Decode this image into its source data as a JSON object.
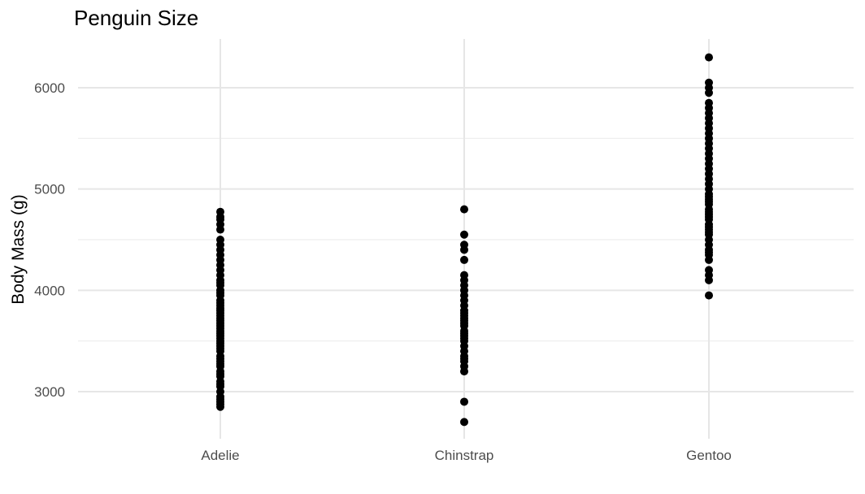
{
  "chart_data": {
    "type": "scatter",
    "title": "Penguin Size",
    "xlabel": "",
    "ylabel": "Body Mass (g)",
    "categories": [
      "Adelie",
      "Chinstrap",
      "Gentoo"
    ],
    "y_ticks": [
      3000,
      4000,
      5000,
      6000
    ],
    "y_tick_labels": [
      "3000",
      "4000",
      "5000",
      "6000"
    ],
    "ylim": [
      2520,
      6470
    ],
    "grid": true,
    "legend": "none",
    "point_color": "#000000",
    "series": [
      {
        "category": "Adelie",
        "values": [
          2850,
          2875,
          2900,
          2925,
          2950,
          3000,
          3050,
          3075,
          3100,
          3150,
          3175,
          3200,
          3250,
          3275,
          3300,
          3325,
          3350,
          3400,
          3425,
          3450,
          3475,
          3500,
          3525,
          3550,
          3575,
          3600,
          3625,
          3650,
          3675,
          3700,
          3725,
          3750,
          3775,
          3800,
          3825,
          3850,
          3875,
          3900,
          3950,
          3975,
          4000,
          4050,
          4075,
          4100,
          4150,
          4200,
          4250,
          4300,
          4350,
          4400,
          4450,
          4500,
          4600,
          4650,
          4700,
          4725,
          4775
        ]
      },
      {
        "category": "Chinstrap",
        "values": [
          2700,
          2900,
          3200,
          3250,
          3300,
          3325,
          3350,
          3400,
          3450,
          3500,
          3525,
          3550,
          3575,
          3600,
          3650,
          3675,
          3700,
          3725,
          3750,
          3775,
          3800,
          3850,
          3900,
          3950,
          4000,
          4050,
          4100,
          4150,
          4300,
          4400,
          4450,
          4550,
          4800
        ]
      },
      {
        "category": "Gentoo",
        "values": [
          3950,
          4100,
          4150,
          4200,
          4300,
          4350,
          4375,
          4400,
          4450,
          4500,
          4550,
          4575,
          4600,
          4625,
          4650,
          4700,
          4725,
          4750,
          4775,
          4800,
          4850,
          4875,
          4900,
          4925,
          4950,
          5000,
          5050,
          5100,
          5150,
          5200,
          5250,
          5300,
          5350,
          5400,
          5450,
          5500,
          5550,
          5600,
          5650,
          5700,
          5750,
          5800,
          5850,
          5950,
          6000,
          6050,
          6300
        ]
      }
    ]
  }
}
